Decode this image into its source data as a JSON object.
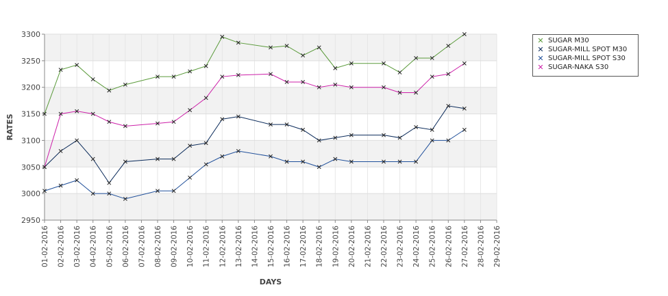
{
  "chart_data": {
    "type": "line",
    "xlabel": "DAYS",
    "ylabel": "RATES",
    "ylim": [
      2950,
      3300
    ],
    "yticks": [
      2950,
      3000,
      3050,
      3100,
      3150,
      3200,
      3250,
      3300
    ],
    "x_tick_labels": [
      "01-02-2016",
      "02-02-2016",
      "03-02-2016",
      "04-02-2016",
      "05-02-2016",
      "06-02-2016",
      "07-02-2016",
      "08-02-2016",
      "09-02-2016",
      "10-02-2016",
      "11-02-2016",
      "12-02-2016",
      "13-02-2016",
      "14-02-2016",
      "15-02-2016",
      "16-02-2016",
      "17-02-2016",
      "18-02-2016",
      "19-02-2016",
      "20-02-2016",
      "21-02-2016",
      "22-02-2016",
      "23-02-2016",
      "24-02-2016",
      "25-02-2016",
      "26-02-2016",
      "27-02-2016",
      "28-02-2016",
      "29-02-2016"
    ],
    "grid": true,
    "legend_position": "right",
    "series": [
      {
        "name": "SUGAR M30",
        "color": "#5a9a3a",
        "points": [
          [
            "01-02-2016",
            3150
          ],
          [
            "02-02-2016",
            3233
          ],
          [
            "03-02-2016",
            3242
          ],
          [
            "04-02-2016",
            3215
          ],
          [
            "05-02-2016",
            3194
          ],
          [
            "06-02-2016",
            3205
          ],
          [
            "08-02-2016",
            3220
          ],
          [
            "09-02-2016",
            3220
          ],
          [
            "10-02-2016",
            3230
          ],
          [
            "11-02-2016",
            3240
          ],
          [
            "12-02-2016",
            3295
          ],
          [
            "13-02-2016",
            3284
          ],
          [
            "15-02-2016",
            3275
          ],
          [
            "16-02-2016",
            3278
          ],
          [
            "17-02-2016",
            3260
          ],
          [
            "18-02-2016",
            3275
          ],
          [
            "19-02-2016",
            3236
          ],
          [
            "20-02-2016",
            3245
          ],
          [
            "22-02-2016",
            3245
          ],
          [
            "23-02-2016",
            3228
          ],
          [
            "24-02-2016",
            3255
          ],
          [
            "25-02-2016",
            3255
          ],
          [
            "26-02-2016",
            3278
          ],
          [
            "27-02-2016",
            3300
          ]
        ]
      },
      {
        "name": "SUGAR-MILL SPOT M30",
        "color": "#0a2a5a",
        "points": [
          [
            "01-02-2016",
            3050
          ],
          [
            "02-02-2016",
            3080
          ],
          [
            "03-02-2016",
            3100
          ],
          [
            "04-02-2016",
            3065
          ],
          [
            "05-02-2016",
            3020
          ],
          [
            "06-02-2016",
            3060
          ],
          [
            "08-02-2016",
            3065
          ],
          [
            "09-02-2016",
            3065
          ],
          [
            "10-02-2016",
            3090
          ],
          [
            "11-02-2016",
            3095
          ],
          [
            "12-02-2016",
            3140
          ],
          [
            "13-02-2016",
            3145
          ],
          [
            "15-02-2016",
            3130
          ],
          [
            "16-02-2016",
            3130
          ],
          [
            "17-02-2016",
            3120
          ],
          [
            "18-02-2016",
            3100
          ],
          [
            "19-02-2016",
            3105
          ],
          [
            "20-02-2016",
            3110
          ],
          [
            "22-02-2016",
            3110
          ],
          [
            "23-02-2016",
            3105
          ],
          [
            "24-02-2016",
            3125
          ],
          [
            "25-02-2016",
            3120
          ],
          [
            "26-02-2016",
            3165
          ],
          [
            "27-02-2016",
            3160
          ]
        ]
      },
      {
        "name": "SUGAR-MILL SPOT S30",
        "color": "#1f4f9a",
        "points": [
          [
            "01-02-2016",
            3005
          ],
          [
            "02-02-2016",
            3015
          ],
          [
            "03-02-2016",
            3025
          ],
          [
            "04-02-2016",
            3000
          ],
          [
            "05-02-2016",
            3000
          ],
          [
            "06-02-2016",
            2990
          ],
          [
            "08-02-2016",
            3005
          ],
          [
            "09-02-2016",
            3005
          ],
          [
            "10-02-2016",
            3030
          ],
          [
            "11-02-2016",
            3055
          ],
          [
            "12-02-2016",
            3070
          ],
          [
            "13-02-2016",
            3080
          ],
          [
            "15-02-2016",
            3070
          ],
          [
            "16-02-2016",
            3060
          ],
          [
            "17-02-2016",
            3060
          ],
          [
            "18-02-2016",
            3050
          ],
          [
            "19-02-2016",
            3065
          ],
          [
            "20-02-2016",
            3060
          ],
          [
            "22-02-2016",
            3060
          ],
          [
            "23-02-2016",
            3060
          ],
          [
            "24-02-2016",
            3060
          ],
          [
            "25-02-2016",
            3100
          ],
          [
            "26-02-2016",
            3100
          ],
          [
            "27-02-2016",
            3120
          ]
        ]
      },
      {
        "name": "SUGAR-NAKA S30",
        "color": "#cc1fa8",
        "points": [
          [
            "01-02-2016",
            3050
          ],
          [
            "02-02-2016",
            3150
          ],
          [
            "03-02-2016",
            3155
          ],
          [
            "04-02-2016",
            3150
          ],
          [
            "05-02-2016",
            3135
          ],
          [
            "06-02-2016",
            3127
          ],
          [
            "08-02-2016",
            3132
          ],
          [
            "09-02-2016",
            3135
          ],
          [
            "10-02-2016",
            3157
          ],
          [
            "11-02-2016",
            3180
          ],
          [
            "12-02-2016",
            3220
          ],
          [
            "13-02-2016",
            3223
          ],
          [
            "15-02-2016",
            3225
          ],
          [
            "16-02-2016",
            3210
          ],
          [
            "17-02-2016",
            3210
          ],
          [
            "18-02-2016",
            3200
          ],
          [
            "19-02-2016",
            3205
          ],
          [
            "20-02-2016",
            3200
          ],
          [
            "22-02-2016",
            3200
          ],
          [
            "23-02-2016",
            3190
          ],
          [
            "24-02-2016",
            3190
          ],
          [
            "25-02-2016",
            3220
          ],
          [
            "26-02-2016",
            3225
          ],
          [
            "27-02-2016",
            3245
          ]
        ]
      }
    ]
  }
}
